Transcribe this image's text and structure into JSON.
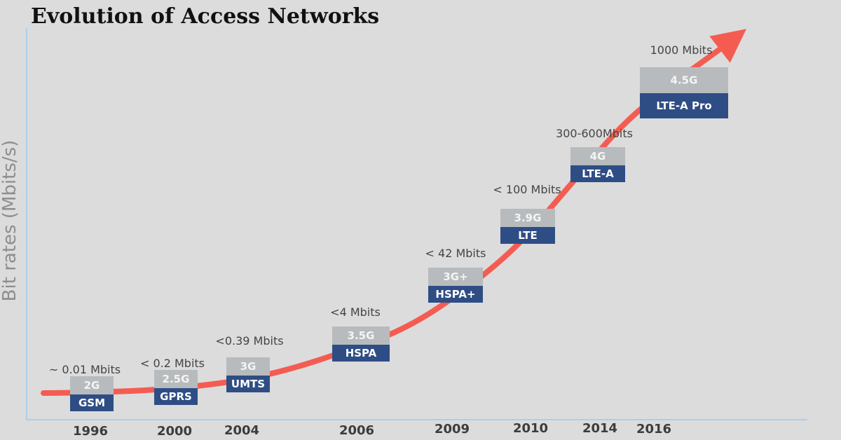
{
  "chart_data": {
    "type": "line",
    "title": "Evolution of Access Networks",
    "xlabel": "",
    "ylabel": "Bit rates (Mbits/s)",
    "categories": [
      "1996",
      "2000",
      "2004",
      "2006",
      "2009",
      "2010",
      "2014",
      "2016"
    ],
    "points": [
      {
        "year": "1996",
        "rate": "~ 0.01 Mbits",
        "generation": "2G",
        "technology": "GSM",
        "value": 0.01
      },
      {
        "year": "2000",
        "rate": "< 0.2 Mbits",
        "generation": "2.5G",
        "technology": "GPRS",
        "value": 0.2
      },
      {
        "year": "2004",
        "rate": "<0.39 Mbits",
        "generation": "3G",
        "technology": "UMTS",
        "value": 0.39
      },
      {
        "year": "2006",
        "rate": "<4 Mbits",
        "generation": "3.5G",
        "technology": "HSPA",
        "value": 4
      },
      {
        "year": "2009",
        "rate": "< 42 Mbits",
        "generation": "3G+",
        "technology": "HSPA+",
        "value": 42
      },
      {
        "year": "2010",
        "rate": "< 100 Mbits",
        "generation": "3.9G",
        "technology": "LTE",
        "value": 100
      },
      {
        "year": "2014",
        "rate": "300-600Mbits",
        "generation": "4G",
        "technology": "LTE-A",
        "value": 600
      },
      {
        "year": "2016",
        "rate": "1000 Mbits",
        "generation": "4.5G",
        "technology": "LTE-A Pro",
        "value": 1000
      }
    ],
    "grid": false,
    "colors": {
      "curve": "#f45c52",
      "generation_box": "#b7bbbd",
      "technology_box": "#2f4d85",
      "axis": "#a9d0ee"
    }
  }
}
